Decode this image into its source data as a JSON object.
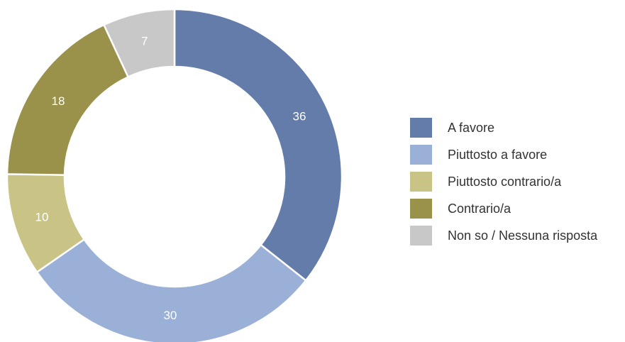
{
  "chart_data": {
    "type": "pie",
    "donut": true,
    "title": "",
    "categories": [
      "A favore",
      "Piuttosto a favore",
      "Piuttosto contrario/a",
      "Contrario/a",
      "Non so / Nessuna risposta"
    ],
    "values": [
      36,
      30,
      10,
      18,
      7
    ],
    "colors": [
      "#637ca9",
      "#9bb0d6",
      "#c9c386",
      "#9a914b",
      "#c8c8c8"
    ],
    "legend_position": "right"
  }
}
